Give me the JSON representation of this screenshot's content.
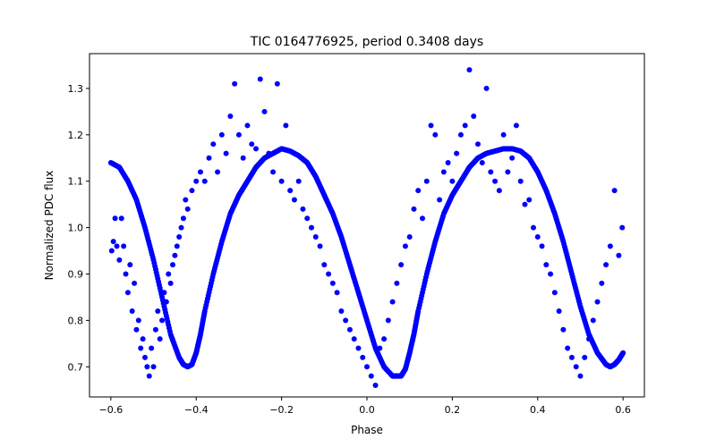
{
  "chart_data": {
    "type": "scatter",
    "title": "TIC 0164776925, period 0.3408 days",
    "xlabel": "Phase",
    "ylabel": "Normalized PDC flux",
    "xlim": [
      -0.65,
      0.65
    ],
    "ylim": [
      0.635,
      1.375
    ],
    "xticks": [
      -0.6,
      -0.4,
      -0.2,
      0.0,
      0.2,
      0.4,
      0.6
    ],
    "xtick_labels": [
      "−0.6",
      "−0.4",
      "−0.2",
      "0.0",
      "0.2",
      "0.4",
      "0.6"
    ],
    "yticks": [
      0.7,
      0.8,
      0.9,
      1.0,
      1.1,
      1.2,
      1.3
    ],
    "ytick_labels": [
      "0.7",
      "0.8",
      "0.9",
      "1.0",
      "1.1",
      "1.2",
      "1.3"
    ],
    "grid": false,
    "legend": "none",
    "marker_color": "#0000ff",
    "series": [
      {
        "role": "smooth-folded-curve",
        "x": [
          -0.6,
          -0.58,
          -0.56,
          -0.54,
          -0.52,
          -0.5,
          -0.48,
          -0.46,
          -0.44,
          -0.43,
          -0.42,
          -0.41,
          -0.4,
          -0.39,
          -0.38,
          -0.36,
          -0.34,
          -0.32,
          -0.3,
          -0.28,
          -0.26,
          -0.24,
          -0.22,
          -0.2,
          -0.18,
          -0.16,
          -0.14,
          -0.12,
          -0.1,
          -0.08,
          -0.06,
          -0.04,
          -0.02,
          0.0,
          0.02,
          0.04,
          0.06,
          0.07,
          0.08,
          0.09,
          0.1,
          0.11,
          0.12,
          0.14,
          0.16,
          0.18,
          0.2,
          0.22,
          0.24,
          0.26,
          0.28,
          0.3,
          0.32,
          0.34,
          0.36,
          0.38,
          0.4,
          0.42,
          0.44,
          0.46,
          0.48,
          0.5,
          0.52,
          0.54,
          0.56,
          0.57,
          0.58,
          0.59,
          0.6
        ],
        "y": [
          1.14,
          1.13,
          1.1,
          1.06,
          1.0,
          0.93,
          0.85,
          0.77,
          0.72,
          0.705,
          0.7,
          0.705,
          0.73,
          0.77,
          0.82,
          0.9,
          0.97,
          1.03,
          1.07,
          1.1,
          1.13,
          1.15,
          1.16,
          1.17,
          1.165,
          1.155,
          1.14,
          1.11,
          1.07,
          1.03,
          0.98,
          0.92,
          0.86,
          0.8,
          0.74,
          0.7,
          0.68,
          0.68,
          0.68,
          0.695,
          0.73,
          0.77,
          0.82,
          0.9,
          0.97,
          1.03,
          1.07,
          1.1,
          1.13,
          1.15,
          1.16,
          1.165,
          1.17,
          1.17,
          1.165,
          1.15,
          1.12,
          1.08,
          1.03,
          0.97,
          0.9,
          0.83,
          0.77,
          0.73,
          0.705,
          0.7,
          0.705,
          0.715,
          0.73
        ]
      },
      {
        "role": "scattered-points",
        "x": [
          -0.598,
          -0.594,
          -0.59,
          -0.586,
          -0.58,
          -0.575,
          -0.57,
          -0.565,
          -0.56,
          -0.555,
          -0.55,
          -0.545,
          -0.54,
          -0.535,
          -0.53,
          -0.525,
          -0.52,
          -0.515,
          -0.51,
          -0.505,
          -0.5,
          -0.495,
          -0.49,
          -0.485,
          -0.48,
          -0.475,
          -0.47,
          -0.465,
          -0.46,
          -0.455,
          -0.45,
          -0.445,
          -0.44,
          -0.435,
          -0.43,
          -0.425,
          -0.42,
          -0.41,
          -0.4,
          -0.39,
          -0.38,
          -0.37,
          -0.36,
          -0.35,
          -0.34,
          -0.33,
          -0.32,
          -0.31,
          -0.3,
          -0.29,
          -0.28,
          -0.27,
          -0.26,
          -0.25,
          -0.24,
          -0.23,
          -0.22,
          -0.21,
          -0.2,
          -0.19,
          -0.18,
          -0.17,
          -0.16,
          -0.15,
          -0.14,
          -0.13,
          -0.12,
          -0.11,
          -0.1,
          -0.09,
          -0.08,
          -0.07,
          -0.06,
          -0.05,
          -0.04,
          -0.03,
          -0.02,
          -0.01,
          0.0,
          0.01,
          0.02,
          0.03,
          0.04,
          0.05,
          0.06,
          0.07,
          0.08,
          0.09,
          0.1,
          0.11,
          0.12,
          0.13,
          0.14,
          0.15,
          0.16,
          0.17,
          0.18,
          0.19,
          0.2,
          0.21,
          0.22,
          0.23,
          0.24,
          0.25,
          0.26,
          0.27,
          0.28,
          0.29,
          0.3,
          0.31,
          0.32,
          0.33,
          0.34,
          0.35,
          0.36,
          0.37,
          0.38,
          0.39,
          0.4,
          0.41,
          0.42,
          0.43,
          0.44,
          0.45,
          0.46,
          0.47,
          0.48,
          0.49,
          0.5,
          0.51,
          0.52,
          0.53,
          0.54,
          0.55,
          0.56,
          0.57,
          0.58,
          0.59,
          0.598
        ],
        "y": [
          0.95,
          0.97,
          1.02,
          0.96,
          0.93,
          1.02,
          0.96,
          0.9,
          0.86,
          0.92,
          0.82,
          0.88,
          0.78,
          0.8,
          0.74,
          0.76,
          0.72,
          0.7,
          0.68,
          0.74,
          0.7,
          0.78,
          0.82,
          0.76,
          0.8,
          0.86,
          0.84,
          0.9,
          0.88,
          0.92,
          0.94,
          0.96,
          0.98,
          1.0,
          1.02,
          1.06,
          1.04,
          1.08,
          1.1,
          1.12,
          1.1,
          1.15,
          1.18,
          1.12,
          1.2,
          1.16,
          1.24,
          1.31,
          1.2,
          1.15,
          1.22,
          1.18,
          1.17,
          1.32,
          1.25,
          1.16,
          1.12,
          1.31,
          1.1,
          1.22,
          1.08,
          1.06,
          1.1,
          1.04,
          1.02,
          1.0,
          0.98,
          0.96,
          0.92,
          0.9,
          0.88,
          0.86,
          0.82,
          0.8,
          0.78,
          0.76,
          0.74,
          0.72,
          0.7,
          0.68,
          0.66,
          0.74,
          0.76,
          0.8,
          0.84,
          0.88,
          0.92,
          0.96,
          0.98,
          1.04,
          1.08,
          1.02,
          1.1,
          1.22,
          1.2,
          1.06,
          1.12,
          1.14,
          1.1,
          1.16,
          1.2,
          1.22,
          1.34,
          1.24,
          1.18,
          1.14,
          1.3,
          1.12,
          1.1,
          1.08,
          1.2,
          1.12,
          1.15,
          1.22,
          1.1,
          1.05,
          1.06,
          1.0,
          0.98,
          0.96,
          0.92,
          0.9,
          0.86,
          0.82,
          0.78,
          0.74,
          0.72,
          0.7,
          0.68,
          0.72,
          0.76,
          0.8,
          0.84,
          0.88,
          0.92,
          0.96,
          1.08,
          0.94,
          1.0
        ]
      }
    ]
  }
}
